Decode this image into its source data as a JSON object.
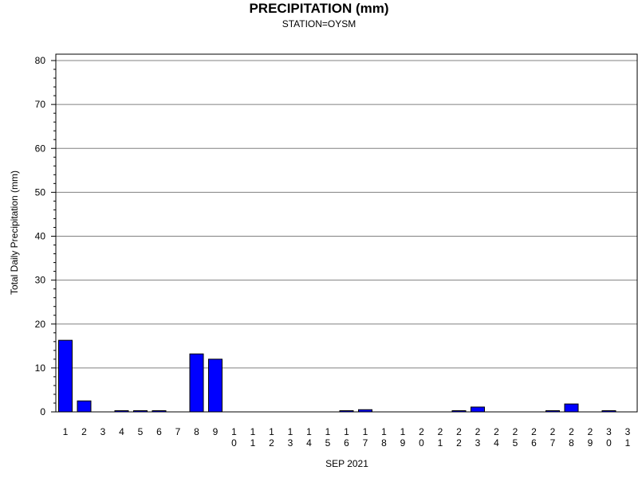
{
  "chart_data": {
    "type": "bar",
    "title": "PRECIPITATION (mm)",
    "subtitle": "STATION=OYSM",
    "xlabel": "SEP 2021",
    "ylabel": "Total Daily Precipitation (mm)",
    "ylim": [
      0,
      80
    ],
    "yticks": [
      0,
      10,
      20,
      30,
      40,
      50,
      60,
      70,
      80
    ],
    "grid": true,
    "bar_color": "#0000ff",
    "categories": [
      "1",
      "2",
      "3",
      "4",
      "5",
      "6",
      "7",
      "8",
      "9",
      "10",
      "11",
      "12",
      "13",
      "14",
      "15",
      "16",
      "17",
      "18",
      "19",
      "20",
      "21",
      "22",
      "23",
      "24",
      "25",
      "26",
      "27",
      "28",
      "29",
      "30",
      "31"
    ],
    "values": [
      16.3,
      2.5,
      0,
      0.1,
      0.1,
      0.1,
      0,
      13.2,
      12.0,
      0,
      0,
      0,
      0,
      0,
      0,
      0.1,
      0.5,
      0,
      0,
      0,
      0,
      0.1,
      1.1,
      0,
      0,
      0,
      0.1,
      1.8,
      0,
      0.1,
      0
    ]
  }
}
